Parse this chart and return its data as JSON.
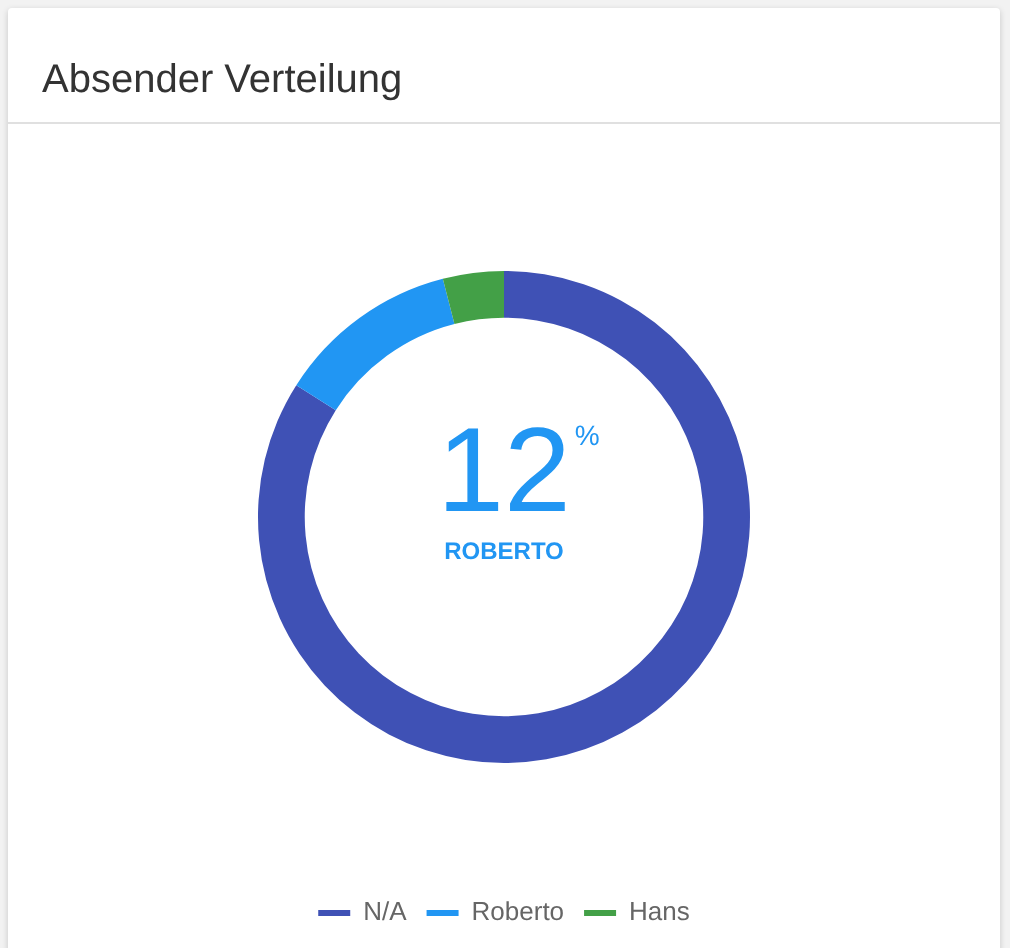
{
  "chart_data": {
    "type": "donut",
    "title": "Absender Verteilung",
    "categories": [
      "N/A",
      "Roberto",
      "Hans"
    ],
    "values": [
      84,
      12,
      4
    ],
    "colors": [
      "#3f51b5",
      "#2196f3",
      "#43a047"
    ],
    "legend": "bottom",
    "annotations": [
      "12$^{%}$",
      "ROBERTO"
    ]
  }
}
